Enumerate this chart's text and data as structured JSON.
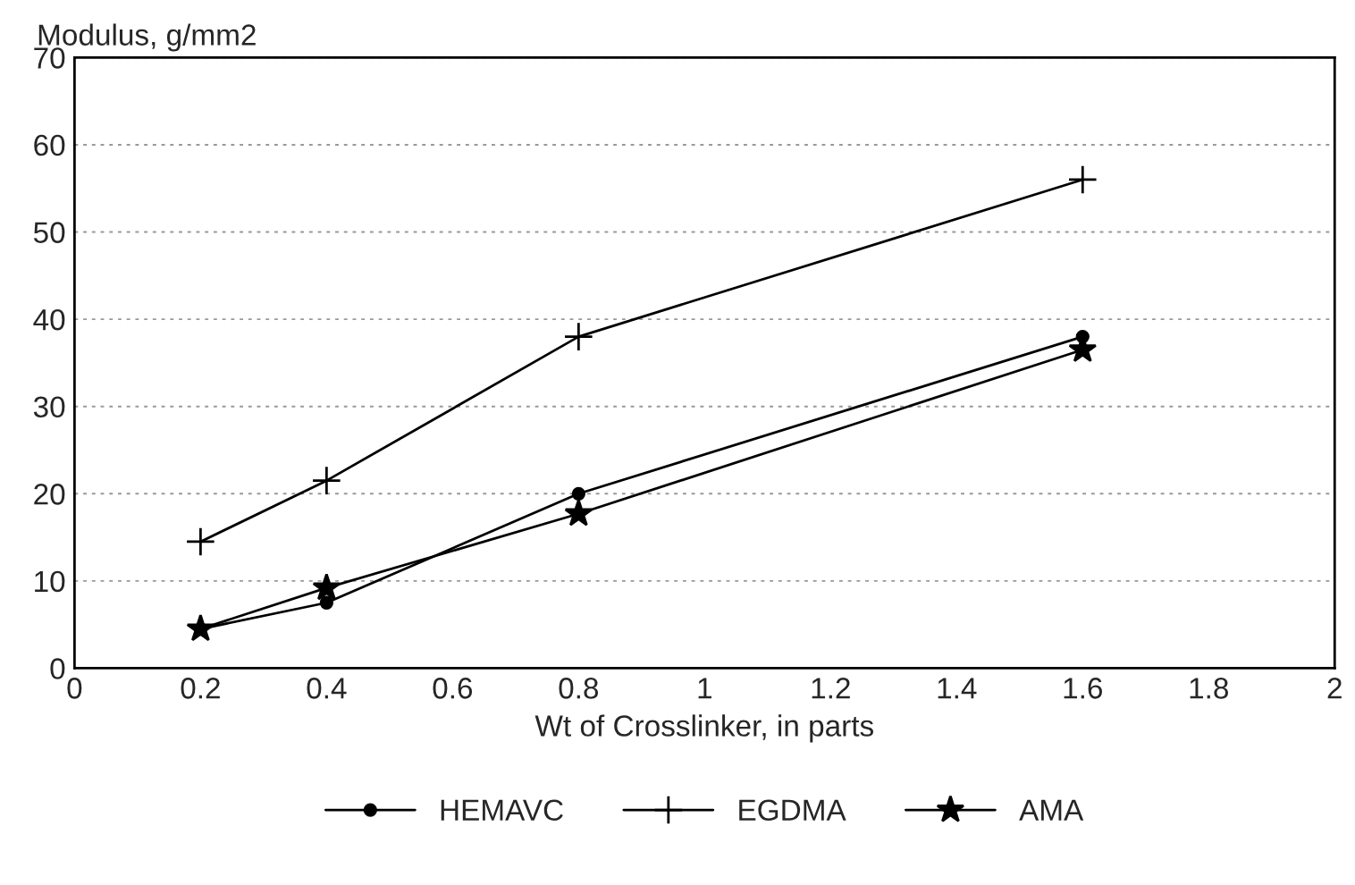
{
  "chart_data": {
    "type": "line",
    "xlabel": "Wt of Crosslinker, in parts",
    "ylabel": "Modulus, g/mm2",
    "x": [
      0.2,
      0.4,
      0.8,
      1.6
    ],
    "series": [
      {
        "name": "HEMAVC",
        "color": "#000000",
        "marker": "circle",
        "values": [
          4.5,
          7.5,
          20,
          38
        ]
      },
      {
        "name": "EGDMA",
        "color": "#000000",
        "marker": "cross",
        "values": [
          14.5,
          21.5,
          38,
          56
        ]
      },
      {
        "name": "AMA",
        "color": "#000000",
        "marker": "star",
        "values": [
          4.5,
          9.2,
          17.7,
          36.5
        ]
      }
    ],
    "xlim": [
      0,
      2
    ],
    "xticks": [
      0,
      0.2,
      0.4,
      0.6,
      0.8,
      1,
      1.2,
      1.4,
      1.6,
      1.8,
      2
    ],
    "ylim": [
      0,
      70
    ],
    "yticks": [
      0,
      10,
      20,
      30,
      40,
      50,
      60,
      70
    ],
    "grid": "y",
    "legend": "bottom",
    "line_style": "solid"
  }
}
